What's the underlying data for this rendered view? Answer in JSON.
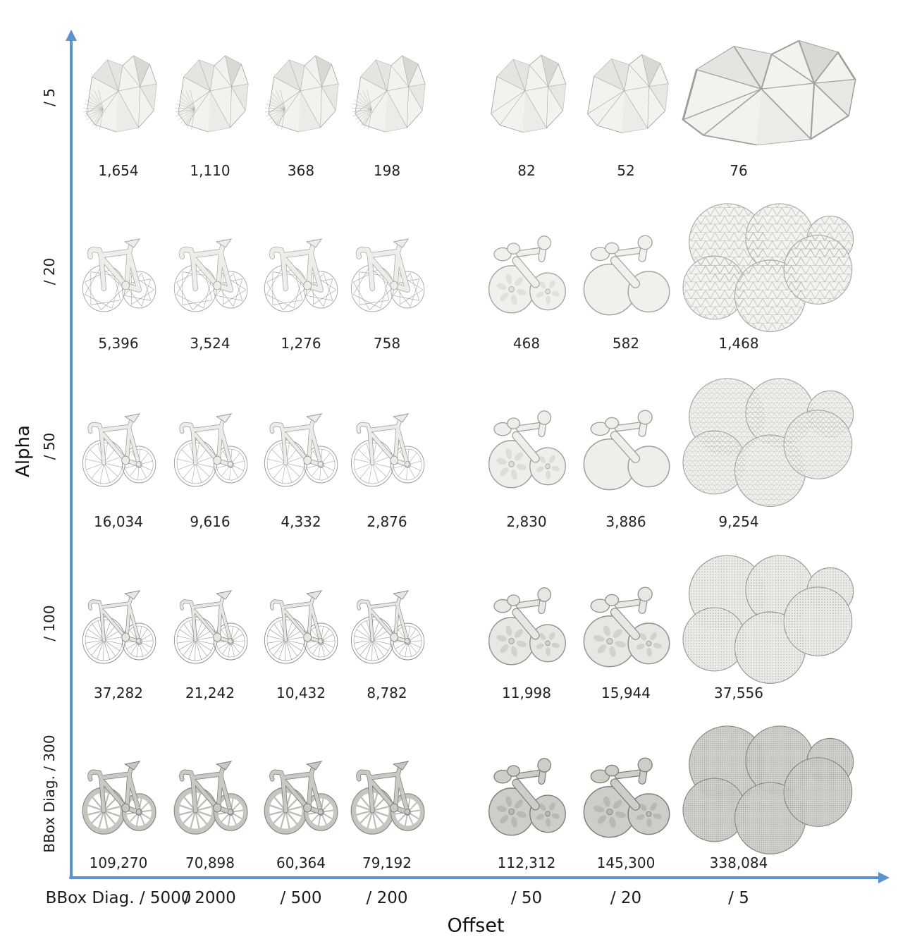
{
  "figure": {
    "description": "Parameter-sweep figure: grid of grayscale 3D mesh reconstructions of a road bicycle (alpha-wrapping style), detail increases toward bottom-left; each thumbnail is annotated with its triangle count",
    "axes": {
      "x": {
        "title": "Offset",
        "ticks": [
          "BBox Diag. / 5000",
          "/ 2000",
          "/ 500",
          "/ 200",
          "/ 50",
          "/ 20",
          "/ 5"
        ]
      },
      "y": {
        "title": "Alpha",
        "ticks_top_to_bottom": [
          "/ 5",
          "/ 20",
          "/ 50",
          "/ 100",
          "BBox Diag. / 300"
        ]
      },
      "color": "#5b93d1"
    },
    "grid": {
      "rows": [
        {
          "alpha": "/ 5",
          "counts": [
            "1,654",
            "1,110",
            "368",
            "198",
            "82",
            "52",
            "76"
          ]
        },
        {
          "alpha": "/ 20",
          "counts": [
            "5,396",
            "3,524",
            "1,276",
            "758",
            "468",
            "582",
            "1,468"
          ]
        },
        {
          "alpha": "/ 50",
          "counts": [
            "16,034",
            "9,616",
            "4,332",
            "2,876",
            "2,830",
            "3,886",
            "9,254"
          ]
        },
        {
          "alpha": "/ 100",
          "counts": [
            "37,282",
            "21,242",
            "10,432",
            "8,782",
            "11,998",
            "15,944",
            "37,556"
          ]
        },
        {
          "alpha": "BBox Diag. / 300",
          "counts": [
            "109,270",
            "70,898",
            "60,364",
            "79,192",
            "112,312",
            "145,300",
            "338,084"
          ]
        }
      ]
    }
  },
  "chart_data": {
    "type": "table",
    "title": "",
    "x_axis": {
      "label": "Offset",
      "categories": [
        "BBox Diag. / 5000",
        "/ 2000",
        "/ 500",
        "/ 200",
        "/ 50",
        "/ 20",
        "/ 5"
      ]
    },
    "y_axis": {
      "label": "Alpha",
      "categories_top_to_bottom": [
        "/ 5",
        "/ 20",
        "/ 50",
        "/ 100",
        "BBox Diag. / 300"
      ]
    },
    "values": [
      [
        1654,
        1110,
        368,
        198,
        82,
        52,
        76
      ],
      [
        5396,
        3524,
        1276,
        758,
        468,
        582,
        1468
      ],
      [
        16034,
        9616,
        4332,
        2876,
        2830,
        3886,
        9254
      ],
      [
        37282,
        21242,
        10432,
        8782,
        11998,
        15944,
        37556
      ],
      [
        109270,
        70898,
        60364,
        79192,
        112312,
        145300,
        338084
      ]
    ],
    "cell_content": "3D mesh render thumbnail per (alpha, offset) with triangle count label below",
    "legend": "none",
    "grid_lines": "off"
  }
}
